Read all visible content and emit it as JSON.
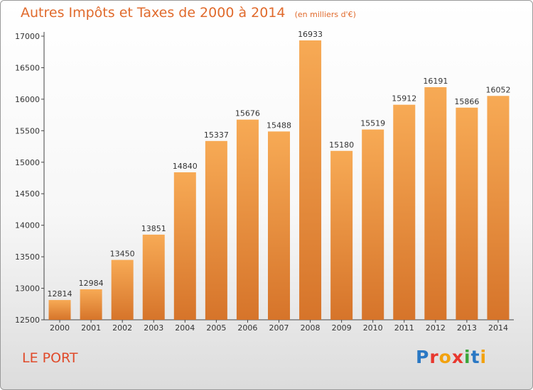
{
  "title": "Autres Impôts et Taxes de 2000 à 2014",
  "unit_note": "(en milliers d'€)",
  "location": "LE PORT",
  "brand": "Proxiti",
  "colors": {
    "title": "#e06a2c",
    "location": "#e04a2a",
    "bar_light": "#f6a752",
    "bar_dark": "#d9772a",
    "logo": [
      "#2a78c4",
      "#e8382f",
      "#f2a20f",
      "#e8382f",
      "#3aa63a",
      "#2a78c4",
      "#f2a20f"
    ]
  },
  "chart_data": {
    "type": "bar",
    "title": "Autres Impôts et Taxes de 2000 à 2014",
    "xlabel": "",
    "ylabel": "",
    "categories": [
      "2000",
      "2001",
      "2002",
      "2003",
      "2004",
      "2005",
      "2006",
      "2007",
      "2008",
      "2009",
      "2010",
      "2011",
      "2012",
      "2013",
      "2014"
    ],
    "values": [
      12814,
      12984,
      13450,
      13851,
      14840,
      15337,
      15676,
      15488,
      16933,
      15180,
      15519,
      15912,
      16191,
      15866,
      16052
    ],
    "ylim": [
      12500,
      17000
    ],
    "yticks": [
      12500,
      13000,
      13500,
      14000,
      14500,
      15000,
      15500,
      16000,
      16500,
      17000
    ],
    "grid": false,
    "legend": "none"
  }
}
